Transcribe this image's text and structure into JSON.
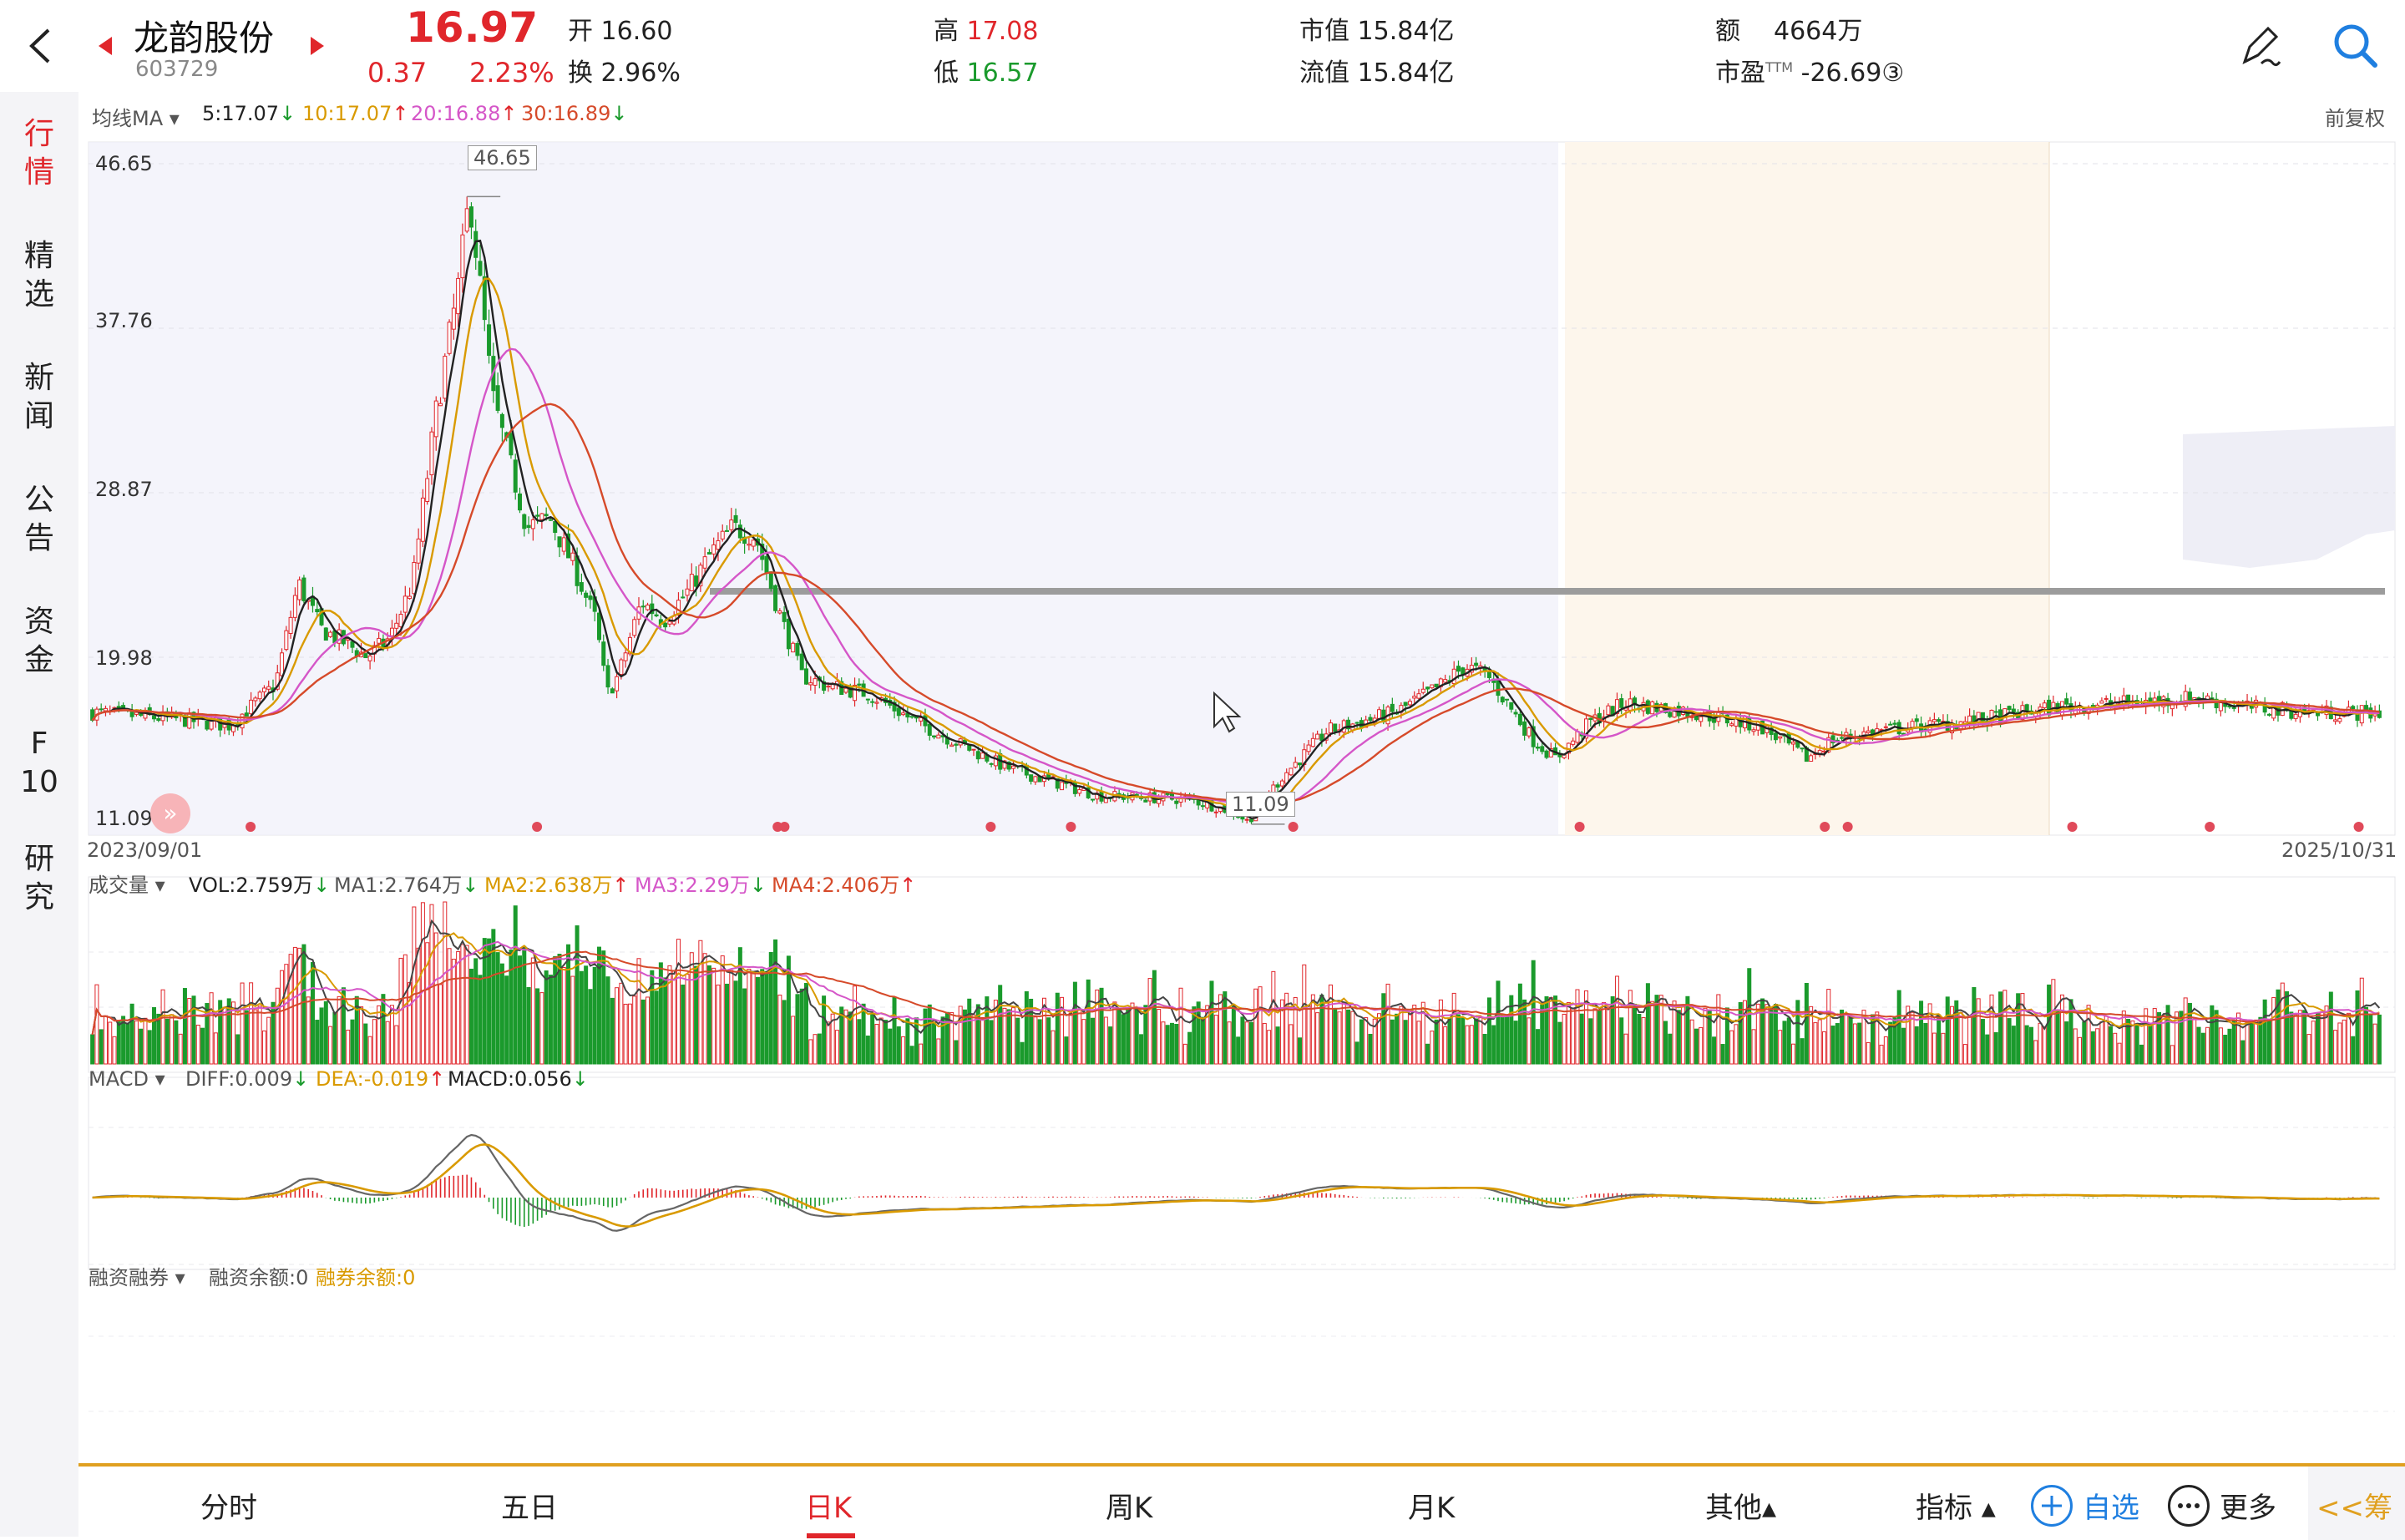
{
  "stock": {
    "name": "龙韵股份",
    "code": "603729",
    "price": "16.97",
    "change": "0.37",
    "change_pct": "2.23%"
  },
  "quote": {
    "open_label": "开",
    "open": "16.60",
    "turnover_label": "换",
    "turnover": "2.96%",
    "high_label": "高",
    "high": "17.08",
    "low_label": "低",
    "low": "16.57",
    "mktcap_label": "市值",
    "mktcap": "15.84亿",
    "float_label": "流值",
    "float": "15.84亿",
    "amount_label": "额",
    "amount": "4664万",
    "pe_label": "市盈",
    "pe_sup": "TTM",
    "pe": "-26.69③"
  },
  "sidebar": {
    "items": [
      {
        "label": "行\n情",
        "active": true
      },
      {
        "label": "精\n选"
      },
      {
        "label": "新\n闻"
      },
      {
        "label": "公\n告"
      },
      {
        "label": "资\n金"
      },
      {
        "label": "F\n10"
      },
      {
        "label": "研\n究"
      }
    ]
  },
  "ma_bar": {
    "dropdown": "均线MA",
    "ma5": "5:17.07",
    "ma10": "10:17.07",
    "ma20": "20:16.88",
    "ma30": "30:16.89",
    "adjust": "前复权"
  },
  "price_axis": {
    "ticks": [
      "46.65",
      "37.76",
      "28.87",
      "19.98",
      "11.09"
    ]
  },
  "price_annot": {
    "high": "46.65",
    "low": "11.09"
  },
  "dates": {
    "start": "2023/09/01",
    "end": "2025/10/31"
  },
  "vol_bar": {
    "dropdown": "成交量",
    "vol": "VOL:2.759万",
    "ma1": "MA1:2.764万",
    "ma2": "MA2:2.638万",
    "ma3": "MA3:2.29万",
    "ma4": "MA4:2.406万"
  },
  "macd_bar": {
    "dropdown": "MACD",
    "diff": "DIFF:0.009",
    "dea": "DEA:-0.019",
    "macd": "MACD:0.056"
  },
  "margin_bar": {
    "dropdown": "融资融券",
    "rz": "融资余额:0",
    "rq": "融券余额:0"
  },
  "tabs": [
    {
      "label": "分时"
    },
    {
      "label": "五日"
    },
    {
      "label": "日K",
      "active": true
    },
    {
      "label": "周K"
    },
    {
      "label": "月K"
    },
    {
      "label": "其他▴"
    }
  ],
  "toolbar": {
    "indicator": "指标 ▴",
    "watch": "自选",
    "more": "更多",
    "chips": "<<筹"
  },
  "arrows": {
    "up": "↑",
    "down": "↓"
  },
  "colors": {
    "up": "#e0262b",
    "down": "#1a9a2c",
    "ma5": "#222222",
    "ma10": "#d99a00",
    "ma20": "#d556c8",
    "ma30": "#d64a2a"
  },
  "chart_data": {
    "type": "candlestick",
    "x_range": [
      "2023/09/01",
      "2025/10/31"
    ],
    "ylim": [
      11.09,
      46.65
    ],
    "y_ticks": [
      46.65,
      37.76,
      28.87,
      19.98,
      11.09
    ],
    "annotations": [
      {
        "label": "46.65",
        "kind": "high"
      },
      {
        "label": "11.09",
        "kind": "low"
      }
    ],
    "close_trend_anchors": [
      [
        0,
        17.0
      ],
      [
        0.04,
        16.6
      ],
      [
        0.06,
        16.3
      ],
      [
        0.08,
        18.5
      ],
      [
        0.09,
        24.0
      ],
      [
        0.1,
        21.5
      ],
      [
        0.11,
        20.8
      ],
      [
        0.12,
        20.0
      ],
      [
        0.13,
        21.0
      ],
      [
        0.14,
        24.0
      ],
      [
        0.15,
        33.0
      ],
      [
        0.16,
        40.0
      ],
      [
        0.165,
        45.0
      ],
      [
        0.175,
        34.0
      ],
      [
        0.19,
        27.0
      ],
      [
        0.2,
        27.5
      ],
      [
        0.21,
        25.0
      ],
      [
        0.22,
        22.0
      ],
      [
        0.225,
        18.0
      ],
      [
        0.23,
        19.0
      ],
      [
        0.24,
        23.0
      ],
      [
        0.25,
        22.0
      ],
      [
        0.26,
        23.5
      ],
      [
        0.27,
        25.5
      ],
      [
        0.28,
        27.0
      ],
      [
        0.29,
        26.5
      ],
      [
        0.3,
        22.5
      ],
      [
        0.31,
        19.0
      ],
      [
        0.32,
        18.5
      ],
      [
        0.34,
        18.0
      ],
      [
        0.36,
        16.5
      ],
      [
        0.4,
        14.0
      ],
      [
        0.44,
        12.5
      ],
      [
        0.48,
        12.3
      ],
      [
        0.5,
        11.6
      ],
      [
        0.505,
        11.1
      ],
      [
        0.52,
        13.5
      ],
      [
        0.54,
        16.0
      ],
      [
        0.57,
        17.0
      ],
      [
        0.59,
        18.5
      ],
      [
        0.6,
        19.5
      ],
      [
        0.61,
        19.0
      ],
      [
        0.63,
        15.5
      ],
      [
        0.64,
        14.5
      ],
      [
        0.655,
        16.5
      ],
      [
        0.67,
        17.5
      ],
      [
        0.7,
        17.0
      ],
      [
        0.73,
        16.2
      ],
      [
        0.75,
        14.5
      ],
      [
        0.76,
        15.5
      ],
      [
        0.78,
        16.0
      ],
      [
        0.82,
        16.5
      ],
      [
        0.86,
        17.3
      ],
      [
        0.9,
        17.6
      ],
      [
        0.92,
        17.8
      ],
      [
        0.94,
        17.3
      ],
      [
        0.97,
        17.0
      ],
      [
        1.0,
        16.97
      ]
    ]
  }
}
